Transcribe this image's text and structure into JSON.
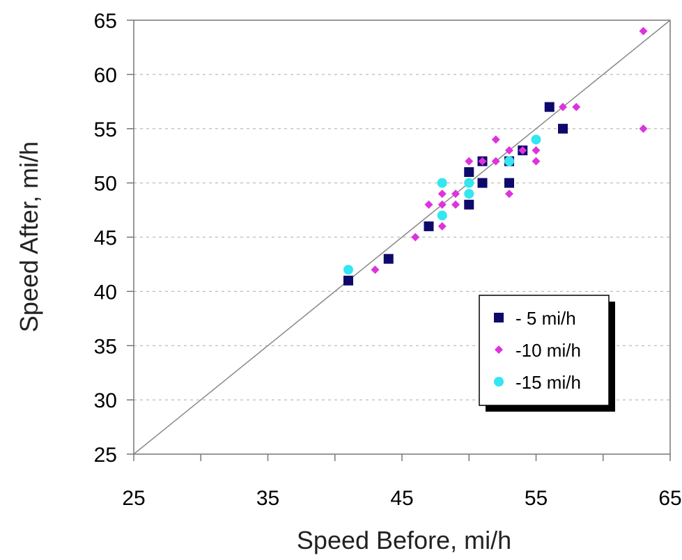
{
  "chart_data": {
    "type": "scatter",
    "xlabel": "Speed Before, mi/h",
    "ylabel": "Speed After, mi/h",
    "xlim": [
      25,
      65
    ],
    "ylim": [
      25,
      65
    ],
    "x_ticks": [
      "25",
      "35",
      "45",
      "55",
      "65"
    ],
    "y_ticks": [
      "25",
      "30",
      "35",
      "40",
      "45",
      "50",
      "55",
      "60",
      "65"
    ],
    "grid": "horizontal dashed",
    "reference_line": "y = x",
    "legend_position": "bottom-right",
    "series": [
      {
        "name": "- 5 mi/h",
        "marker": "square",
        "color": "#0d0a6b",
        "points": [
          [
            41,
            41
          ],
          [
            44,
            43
          ],
          [
            47,
            46
          ],
          [
            50,
            48
          ],
          [
            50,
            51
          ],
          [
            51,
            50
          ],
          [
            51,
            52
          ],
          [
            53,
            50
          ],
          [
            53,
            52
          ],
          [
            54,
            53
          ],
          [
            56,
            57
          ],
          [
            57,
            55
          ]
        ]
      },
      {
        "name": "-10 mi/h",
        "marker": "diamond",
        "color": "#dd33dd",
        "points": [
          [
            43,
            42
          ],
          [
            46,
            45
          ],
          [
            47,
            48
          ],
          [
            48,
            46
          ],
          [
            48,
            48
          ],
          [
            48,
            49
          ],
          [
            49,
            48
          ],
          [
            49,
            49
          ],
          [
            50,
            49
          ],
          [
            50,
            50
          ],
          [
            50,
            52
          ],
          [
            51,
            52
          ],
          [
            52,
            52
          ],
          [
            52,
            54
          ],
          [
            53,
            49
          ],
          [
            53,
            53
          ],
          [
            54,
            53
          ],
          [
            55,
            52
          ],
          [
            55,
            53
          ],
          [
            57,
            57
          ],
          [
            58,
            57
          ],
          [
            63,
            55
          ],
          [
            63,
            64
          ]
        ]
      },
      {
        "name": "-15 mi/h",
        "marker": "circle",
        "color": "#33e6f0",
        "points": [
          [
            41,
            42
          ],
          [
            48,
            47
          ],
          [
            48,
            50
          ],
          [
            50,
            49
          ],
          [
            50,
            50
          ],
          [
            53,
            52
          ],
          [
            55,
            54
          ]
        ]
      }
    ]
  }
}
